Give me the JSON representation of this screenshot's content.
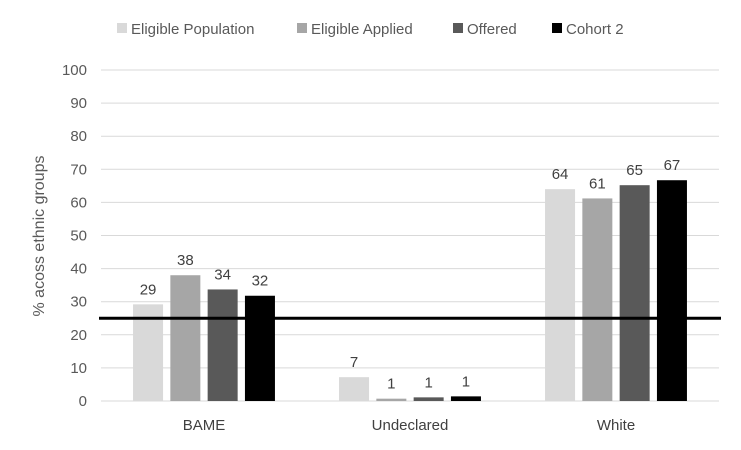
{
  "chart_data": {
    "type": "bar",
    "title": "",
    "xlabel": "",
    "ylabel": "% acoss ethnic groups",
    "categories": [
      "BAME",
      "Undeclared",
      "White"
    ],
    "series": [
      {
        "name": "Eligible Population",
        "values": [
          29,
          7,
          64
        ],
        "color": "#d9d9d9"
      },
      {
        "name": "Eligible Applied",
        "values": [
          38,
          1,
          61
        ],
        "color": "#a6a6a6"
      },
      {
        "name": "Offered",
        "values": [
          34,
          1,
          65
        ],
        "color": "#595959"
      },
      {
        "name": "Cohort 2",
        "values": [
          32,
          1,
          67
        ],
        "color": "#000000"
      }
    ],
    "bar_heights": [
      [
        29.2,
        7.2,
        64
      ],
      [
        38,
        0.7,
        61.2
      ],
      [
        33.7,
        1.1,
        65.2
      ],
      [
        31.8,
        1.4,
        66.7
      ]
    ],
    "ylim": [
      0,
      100
    ],
    "yticks": [
      0,
      10,
      20,
      30,
      40,
      50,
      60,
      70,
      80,
      90,
      100
    ],
    "reference_line": 25,
    "grid": true,
    "legend_position": "top"
  }
}
